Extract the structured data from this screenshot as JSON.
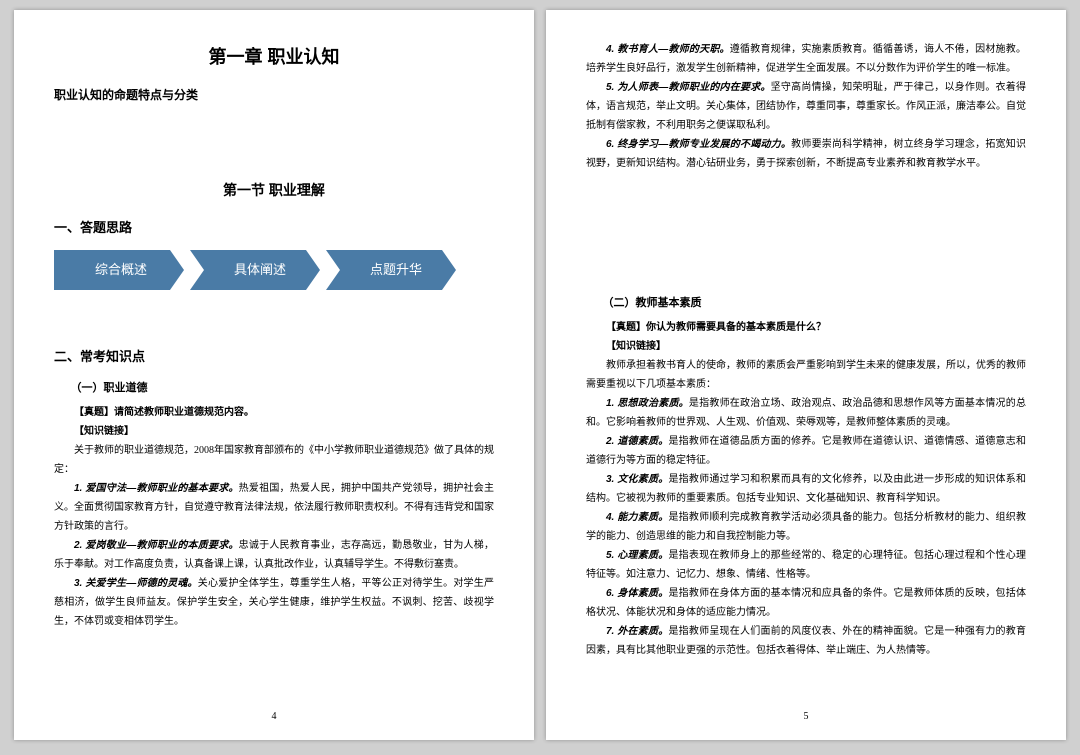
{
  "page_left": {
    "chapter_title": "第一章 职业认知",
    "sub_heading": "职业认知的命题特点与分类",
    "section_title": "第一节 职业理解",
    "h2_1": "一、答题思路",
    "chevrons": {
      "items": [
        "综合概述",
        "具体阐述",
        "点题升华"
      ],
      "fill": "#4a7ba6",
      "text_color": "#ffffff",
      "widths": [
        130,
        130,
        130
      ],
      "height": 40
    },
    "h2_2": "二、常考知识点",
    "h3_1": "（一）职业道德",
    "q_label": "【真题】请简述教师职业道德规范内容。",
    "k_label": "【知识链接】",
    "intro": "关于教师的职业道德规范，2008年国家教育部颁布的《中小学教师职业道德规范》做了具体的规定：",
    "p1_bold": "1. 爱国守法—教师职业的基本要求。",
    "p1": "热爱祖国，热爱人民，拥护中国共产党领导，拥护社会主义。全面贯彻国家教育方针，自觉遵守教育法律法规，依法履行教师职责权利。不得有违背党和国家方针政策的言行。",
    "p2_bold": "2. 爱岗敬业—教师职业的本质要求。",
    "p2": "忠诚于人民教育事业，志存高远，勤恳敬业，甘为人梯，乐于奉献。对工作高度负责，认真备课上课，认真批改作业，认真辅导学生。不得敷衍塞责。",
    "p3_bold": "3. 关爱学生—师德的灵魂。",
    "p3": "关心爱护全体学生，尊重学生人格，平等公正对待学生。对学生严慈相济，做学生良师益友。保护学生安全，关心学生健康，维护学生权益。不讽刺、挖苦、歧视学生，不体罚或变相体罚学生。",
    "page_num": "4"
  },
  "page_right": {
    "p4_bold": "4. 教书育人—教师的天职。",
    "p4": "遵循教育规律，实施素质教育。循循善诱，诲人不倦，因材施教。培养学生良好品行，激发学生创新精神，促进学生全面发展。不以分数作为评价学生的唯一标准。",
    "p5_bold": "5. 为人师表—教师职业的内在要求。",
    "p5": "坚守高尚情操，知荣明耻，严于律己，以身作则。衣着得体，语言规范，举止文明。关心集体，团结协作，尊重同事，尊重家长。作风正派，廉洁奉公。自觉抵制有偿家教，不利用职务之便谋取私利。",
    "p6_bold": "6. 终身学习—教师专业发展的不竭动力。",
    "p6": "教师要崇尚科学精神，树立终身学习理念，拓宽知识视野，更新知识结构。潜心钻研业务，勇于探索创新，不断提高专业素养和教育教学水平。",
    "h3_2": "（二）教师基本素质",
    "q2_label": "【真题】你认为教师需要具备的基本素质是什么？",
    "k2_label": "【知识链接】",
    "intro2": "教师承担着教书育人的使命，教师的素质会严重影响到学生未来的健康发展，所以，优秀的教师需要重视以下几项基本素质：",
    "r1_bold": "1. 思想政治素质。",
    "r1": "是指教师在政治立场、政治观点、政治品德和思想作风等方面基本情况的总和。它影响着教师的世界观、人生观、价值观、荣辱观等，是教师整体素质的灵魂。",
    "r2_bold": "2. 道德素质。",
    "r2": "是指教师在道德品质方面的修养。它是教师在道德认识、道德情感、道德意志和道德行为等方面的稳定特征。",
    "r3_bold": "3. 文化素质。",
    "r3": "是指教师通过学习和积累而具有的文化修养，以及由此进一步形成的知识体系和结构。它被视为教师的重要素质。包括专业知识、文化基础知识、教育科学知识。",
    "r4_bold": "4. 能力素质。",
    "r4": "是指教师顺利完成教育教学活动必须具备的能力。包括分析教材的能力、组织教学的能力、创造思维的能力和自我控制能力等。",
    "r5_bold": "5. 心理素质。",
    "r5": "是指表现在教师身上的那些经常的、稳定的心理特征。包括心理过程和个性心理特征等。如注意力、记忆力、想象、情绪、性格等。",
    "r6_bold": "6. 身体素质。",
    "r6": "是指教师在身体方面的基本情况和应具备的条件。它是教师体质的反映，包括体格状况、体能状况和身体的适应能力情况。",
    "r7_bold": "7. 外在素质。",
    "r7": "是指教师呈现在人们面前的风度仪表、外在的精神面貌。它是一种强有力的教育因素，具有比其他职业更强的示范性。包括衣着得体、举止端庄、为人热情等。",
    "page_num": "5"
  },
  "style": {
    "page_bg": "#ffffff",
    "viewer_bg": "#d0d0d0",
    "body_font_size": 10,
    "title_font_size": 18,
    "section_font_size": 14,
    "h2_font_size": 13,
    "h3_font_size": 11
  }
}
